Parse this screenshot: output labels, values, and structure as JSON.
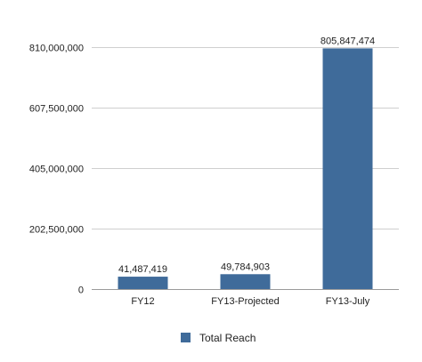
{
  "chart_data": {
    "type": "bar",
    "categories": [
      "FY12",
      "FY13-Projected",
      "FY13-July"
    ],
    "series": [
      {
        "name": "Total Reach",
        "values": [
          41487419,
          49784903,
          805847474
        ],
        "labels": [
          "41,487,419",
          "49,784,903",
          "805,847,474"
        ],
        "color": "#3f6b9a"
      }
    ],
    "yticks": [
      0,
      202500000,
      405000000,
      607500000,
      810000000
    ],
    "ytick_labels": [
      "0",
      "202,500,000",
      "405,000,000",
      "607,500,000",
      "810,000,000"
    ],
    "ylim": [
      0,
      810000000
    ],
    "grid": true,
    "legend_position": "bottom"
  }
}
